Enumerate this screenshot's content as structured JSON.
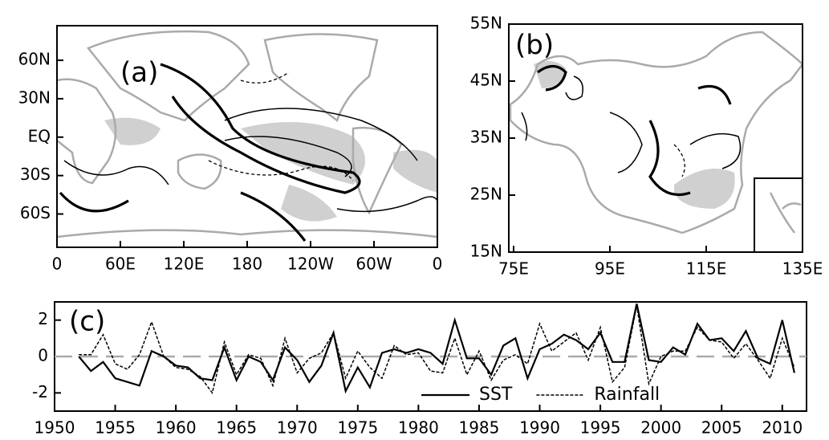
{
  "chart_data": [
    {
      "type": "map",
      "label": "(a)",
      "xlim": [
        0,
        360
      ],
      "xticks": [
        0,
        {
          "value": 60,
          "label": "60E"
        },
        {
          "value": 120,
          "label": "120E"
        },
        180,
        {
          "value": 240,
          "label": "120W"
        },
        {
          "value": 300,
          "label": "60W"
        },
        {
          "value": 360,
          "label": "0"
        }
      ],
      "ylim": [
        -86,
        87
      ],
      "yticks": [
        {
          "value": 60,
          "label": "60N"
        },
        {
          "value": 30,
          "label": "30N"
        },
        {
          "value": 0,
          "label": "EQ"
        },
        {
          "value": -30,
          "label": "30S"
        },
        {
          "value": -60,
          "label": "60S"
        }
      ]
    },
    {
      "type": "map",
      "label": "(b)",
      "xlim": [
        74,
        135
      ],
      "xticks": [
        {
          "value": 75,
          "label": "75E"
        },
        {
          "value": 95,
          "label": "95E"
        },
        {
          "value": 115,
          "label": "115E"
        },
        {
          "value": 135,
          "label": "135E"
        }
      ],
      "ylim": [
        15,
        55
      ],
      "yticks": [
        {
          "value": 55,
          "label": "55N"
        },
        {
          "value": 45,
          "label": "45N"
        },
        {
          "value": 35,
          "label": "35N"
        },
        {
          "value": 25,
          "label": "25N"
        },
        {
          "value": 15,
          "label": "15N"
        }
      ]
    },
    {
      "type": "line",
      "label": "(c)",
      "x": [
        1952,
        1953,
        1954,
        1955,
        1956,
        1957,
        1958,
        1959,
        1960,
        1961,
        1962,
        1963,
        1964,
        1965,
        1966,
        1967,
        1968,
        1969,
        1970,
        1971,
        1972,
        1973,
        1974,
        1975,
        1976,
        1977,
        1978,
        1979,
        1980,
        1981,
        1982,
        1983,
        1984,
        1985,
        1986,
        1987,
        1988,
        1989,
        1990,
        1991,
        1992,
        1993,
        1994,
        1995,
        1996,
        1997,
        1998,
        1999,
        2000,
        2001,
        2002,
        2003,
        2004,
        2005,
        2006,
        2007,
        2008,
        2009,
        2010,
        2011
      ],
      "series": [
        {
          "name": "SST",
          "color": "#000000",
          "dash": false,
          "values": [
            0,
            -0.8,
            -0.3,
            -1.2,
            -1.4,
            -1.6,
            0.3,
            0,
            -0.5,
            -0.6,
            -1.2,
            -1.3,
            0.5,
            -1.3,
            0,
            -0.3,
            -1.3,
            0.5,
            -0.2,
            -1.4,
            -0.5,
            1.3,
            -1.9,
            -0.6,
            -1.7,
            0.2,
            0.4,
            0.2,
            0.4,
            0.2,
            -0.4,
            2,
            -0.1,
            -0.1,
            -1,
            0.6,
            1,
            -1.2,
            0.4,
            0.7,
            1.2,
            0.9,
            0.4,
            1.3,
            -0.3,
            -0.3,
            2.9,
            -0.2,
            -0.3,
            0.5,
            0.1,
            1.8,
            0.9,
            1,
            0.3,
            1.4,
            -0.1,
            -0.4,
            2,
            -0.9
          ]
        },
        {
          "name": "Rainfall",
          "color": "#000000",
          "dash": true,
          "values": [
            0.1,
            0.1,
            1.2,
            -0.4,
            -0.7,
            0.1,
            1.9,
            0,
            -0.6,
            -0.7,
            -1.1,
            -2,
            0.8,
            -1,
            0.1,
            -0.1,
            -1.6,
            1,
            -0.9,
            -0.1,
            0.2,
            1.3,
            -1.2,
            0.3,
            -0.6,
            -1.2,
            0.6,
            0.1,
            0.2,
            -0.8,
            -0.9,
            1,
            -1,
            0.3,
            -1.3,
            -0.2,
            0.1,
            -0.4,
            1.8,
            0.3,
            0.8,
            1.3,
            -0.2,
            1.6,
            -1.4,
            -0.6,
            2.8,
            -1.5,
            0,
            0.3,
            0.3,
            1.6,
            0.9,
            0.8,
            -0.1,
            0.7,
            -0.2,
            -1.2,
            1,
            -0.6
          ]
        }
      ],
      "xlim": [
        1950,
        2012
      ],
      "xticks": [
        1950,
        1955,
        1960,
        1965,
        1970,
        1975,
        1980,
        1985,
        1990,
        1995,
        2000,
        2005,
        2010
      ],
      "ylim": [
        -3,
        3
      ],
      "yticks": [
        -2,
        0,
        2
      ],
      "zero_line": true,
      "legend": "lower right"
    }
  ]
}
